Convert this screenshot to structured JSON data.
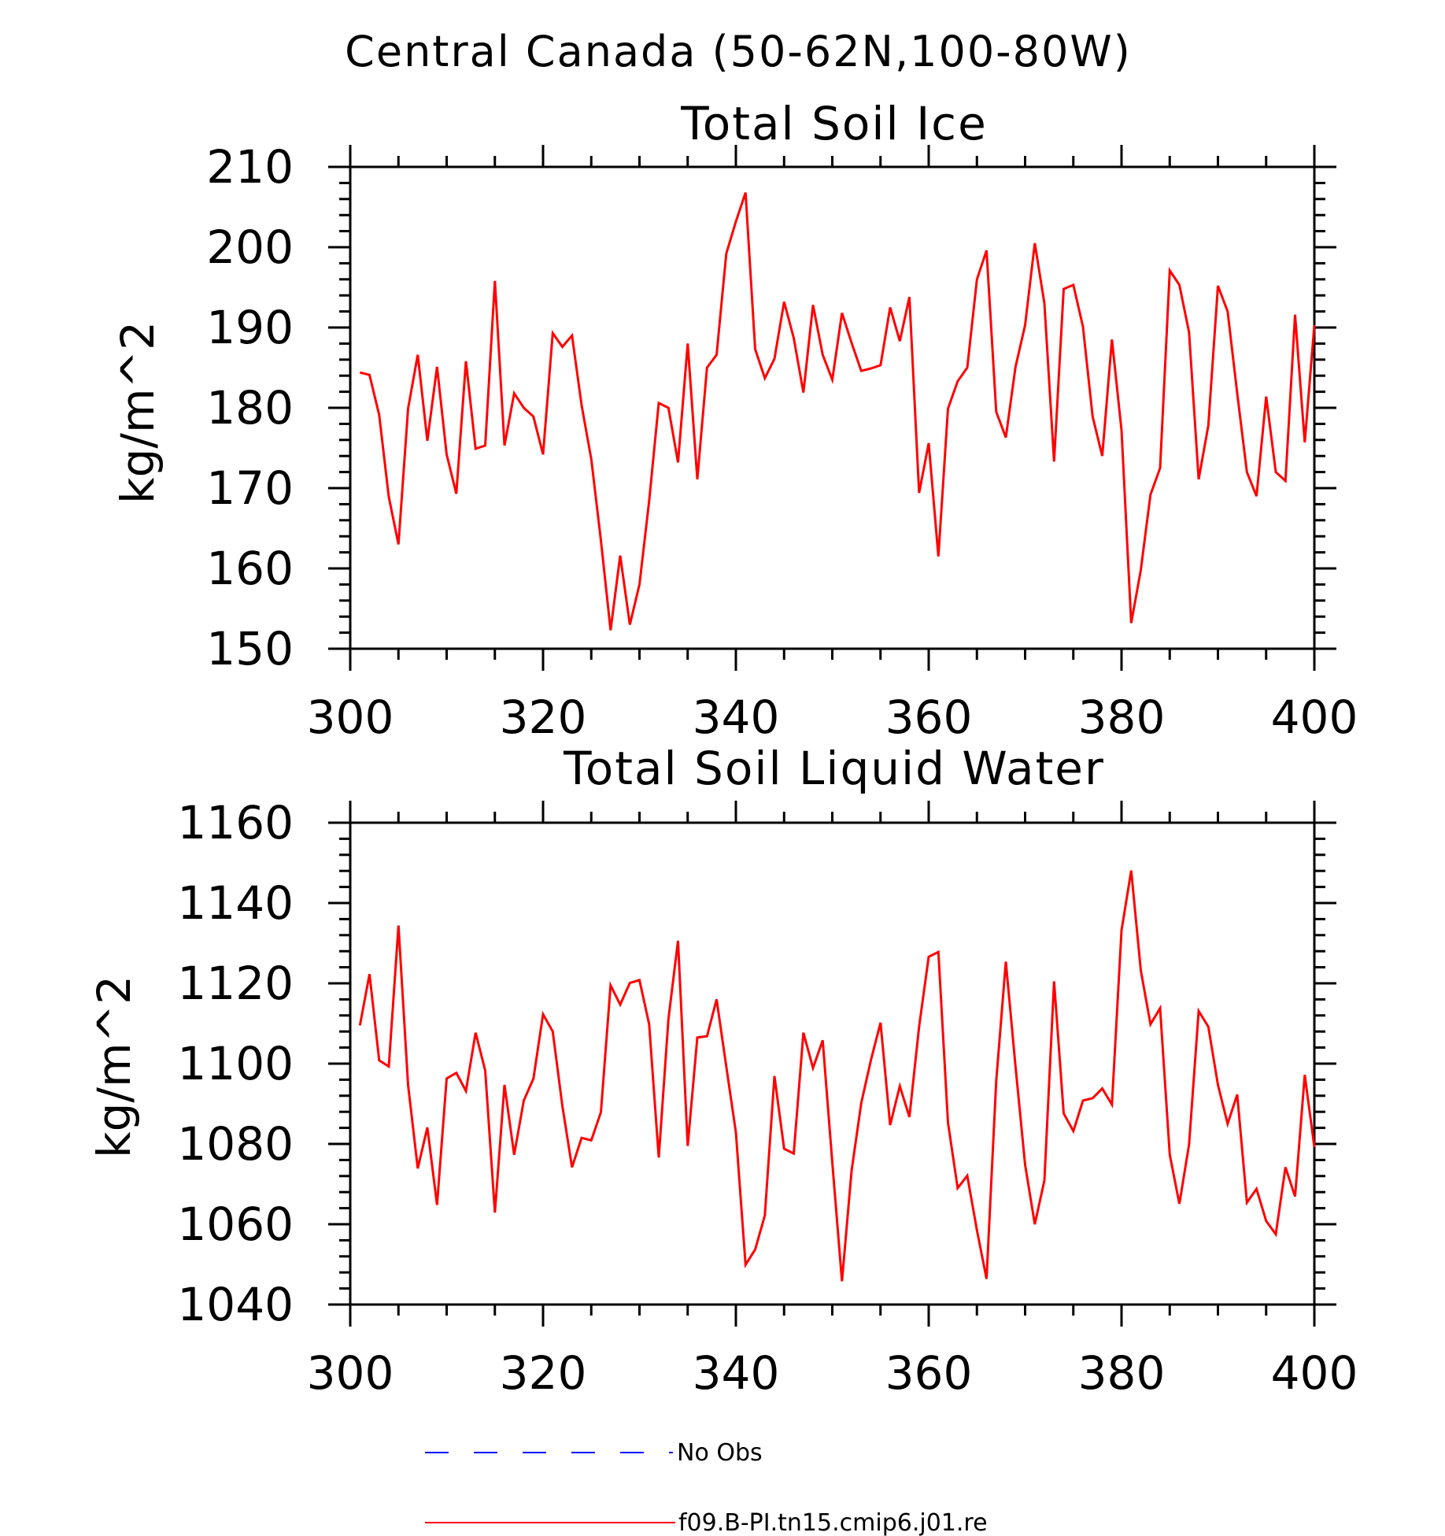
{
  "figure_title": "Central Canada (50-62N,100-80W)",
  "legend": [
    {
      "label": "No Obs",
      "color": "#0000ff",
      "style": "dashed"
    },
    {
      "label": "f09.B-PI.tn15.cmip6.j01.re",
      "color": "#ff0000",
      "style": "solid"
    }
  ],
  "chart_data": [
    {
      "type": "line",
      "title": "Total Soil Ice",
      "xlabel": "",
      "ylabel": "kg/m^2",
      "xlim": [
        300,
        400
      ],
      "ylim": [
        150,
        210
      ],
      "x_ticks": [
        300,
        320,
        340,
        360,
        380,
        400
      ],
      "y_ticks": [
        150,
        160,
        170,
        180,
        190,
        200,
        210
      ],
      "grid": false,
      "series": [
        {
          "name": "f09.B-PI.tn15.cmip6.j01.re",
          "color": "#ff0000",
          "x": [
            301,
            302,
            303,
            304,
            305,
            306,
            307,
            308,
            309,
            310,
            311,
            312,
            313,
            314,
            315,
            316,
            317,
            318,
            319,
            320,
            321,
            322,
            323,
            324,
            325,
            326,
            327,
            328,
            329,
            330,
            331,
            332,
            333,
            334,
            335,
            336,
            337,
            338,
            339,
            340,
            341,
            342,
            343,
            344,
            345,
            346,
            347,
            348,
            349,
            350,
            351,
            352,
            353,
            354,
            355,
            356,
            357,
            358,
            359,
            360,
            361,
            362,
            363,
            364,
            365,
            366,
            367,
            368,
            369,
            370,
            371,
            372,
            373,
            374,
            375,
            376,
            377,
            378,
            379,
            380,
            381,
            382,
            383,
            384,
            385,
            386,
            387,
            388,
            389,
            390,
            391,
            392,
            393,
            394,
            395,
            396,
            397,
            398,
            399,
            400
          ],
          "values": [
            184.4,
            184.1,
            179.1,
            168.9,
            163.0,
            179.9,
            186.6,
            175.9,
            185.1,
            174.2,
            169.3,
            185.8,
            174.9,
            175.3,
            195.8,
            175.3,
            181.8,
            180.0,
            178.9,
            174.2,
            189.3,
            187.6,
            189.0,
            180.3,
            173.6,
            163.5,
            152.3,
            161.6,
            153.0,
            158.0,
            168.4,
            180.6,
            180.0,
            173.2,
            188.0,
            171.1,
            185.0,
            186.6,
            199.2,
            203.2,
            206.8,
            187.3,
            183.7,
            186.1,
            193.2,
            188.7,
            181.9,
            192.8,
            186.6,
            183.5,
            191.8,
            188.1,
            184.6,
            184.9,
            185.3,
            192.5,
            188.3,
            193.8,
            169.4,
            175.6,
            161.5,
            179.9,
            183.3,
            185.0,
            196.0,
            199.6,
            179.5,
            176.3,
            185.1,
            190.3,
            200.5,
            193.0,
            173.3,
            194.8,
            195.3,
            190.1,
            178.9,
            174.0,
            188.5,
            177.2,
            153.2,
            159.8,
            169.2,
            172.5,
            197.1,
            195.3,
            189.4,
            171.1,
            177.8,
            195.2,
            192.0,
            181.8,
            172.0,
            169.0,
            181.4,
            172.0,
            170.9,
            191.6,
            175.7,
            190.3
          ]
        }
      ]
    },
    {
      "type": "line",
      "title": "Total Soil Liquid Water",
      "xlabel": "",
      "ylabel": "kg/m^2",
      "xlim": [
        300,
        400
      ],
      "ylim": [
        1040,
        1160
      ],
      "x_ticks": [
        300,
        320,
        340,
        360,
        380,
        400
      ],
      "y_ticks": [
        1040,
        1060,
        1080,
        1100,
        1120,
        1140,
        1160
      ],
      "grid": false,
      "series": [
        {
          "name": "f09.B-PI.tn15.cmip6.j01.re",
          "color": "#ff0000",
          "x": [
            301,
            302,
            303,
            304,
            305,
            306,
            307,
            308,
            309,
            310,
            311,
            312,
            313,
            314,
            315,
            316,
            317,
            318,
            319,
            320,
            321,
            322,
            323,
            324,
            325,
            326,
            327,
            328,
            329,
            330,
            331,
            332,
            333,
            334,
            335,
            336,
            337,
            338,
            339,
            340,
            341,
            342,
            343,
            344,
            345,
            346,
            347,
            348,
            349,
            350,
            351,
            352,
            353,
            354,
            355,
            356,
            357,
            358,
            359,
            360,
            361,
            362,
            363,
            364,
            365,
            366,
            367,
            368,
            369,
            370,
            371,
            372,
            373,
            374,
            375,
            376,
            377,
            378,
            379,
            380,
            381,
            382,
            383,
            384,
            385,
            386,
            387,
            388,
            389,
            390,
            391,
            392,
            393,
            394,
            395,
            396,
            397,
            398,
            399,
            400
          ],
          "values": [
            1109.5,
            1122.3,
            1100.8,
            1099.3,
            1134.4,
            1094.7,
            1073.9,
            1084.1,
            1064.8,
            1096.3,
            1097.7,
            1093.2,
            1107.7,
            1098.3,
            1062.9,
            1094.7,
            1077.3,
            1090.8,
            1096.3,
            1112.3,
            1108.0,
            1089.5,
            1074.2,
            1081.5,
            1080.9,
            1087.9,
            1119.5,
            1114.7,
            1120.1,
            1120.8,
            1109.8,
            1076.6,
            1111.1,
            1130.6,
            1079.5,
            1106.5,
            1106.8,
            1116.0,
            1099.3,
            1082.9,
            1049.9,
            1053.7,
            1062.2,
            1096.9,
            1078.8,
            1077.6,
            1107.7,
            1098.9,
            1105.8,
            1075.4,
            1045.8,
            1073.3,
            1090.2,
            1100.8,
            1110.2,
            1084.7,
            1094.4,
            1086.7,
            1109.2,
            1126.6,
            1127.8,
            1085.3,
            1069.0,
            1072.1,
            1058.5,
            1046.4,
            1095.7,
            1125.4,
            1099.3,
            1074.8,
            1060.0,
            1070.9,
            1120.5,
            1087.6,
            1083.2,
            1090.8,
            1091.4,
            1093.8,
            1089.8,
            1133.2,
            1148.1,
            1123.2,
            1109.8,
            1113.8,
            1077.3,
            1065.1,
            1079.8,
            1113.1,
            1109.2,
            1094.7,
            1085.0,
            1092.3,
            1065.4,
            1068.8,
            1060.8,
            1057.5,
            1074.2,
            1066.9,
            1097.2,
            1079.2
          ]
        }
      ]
    }
  ]
}
